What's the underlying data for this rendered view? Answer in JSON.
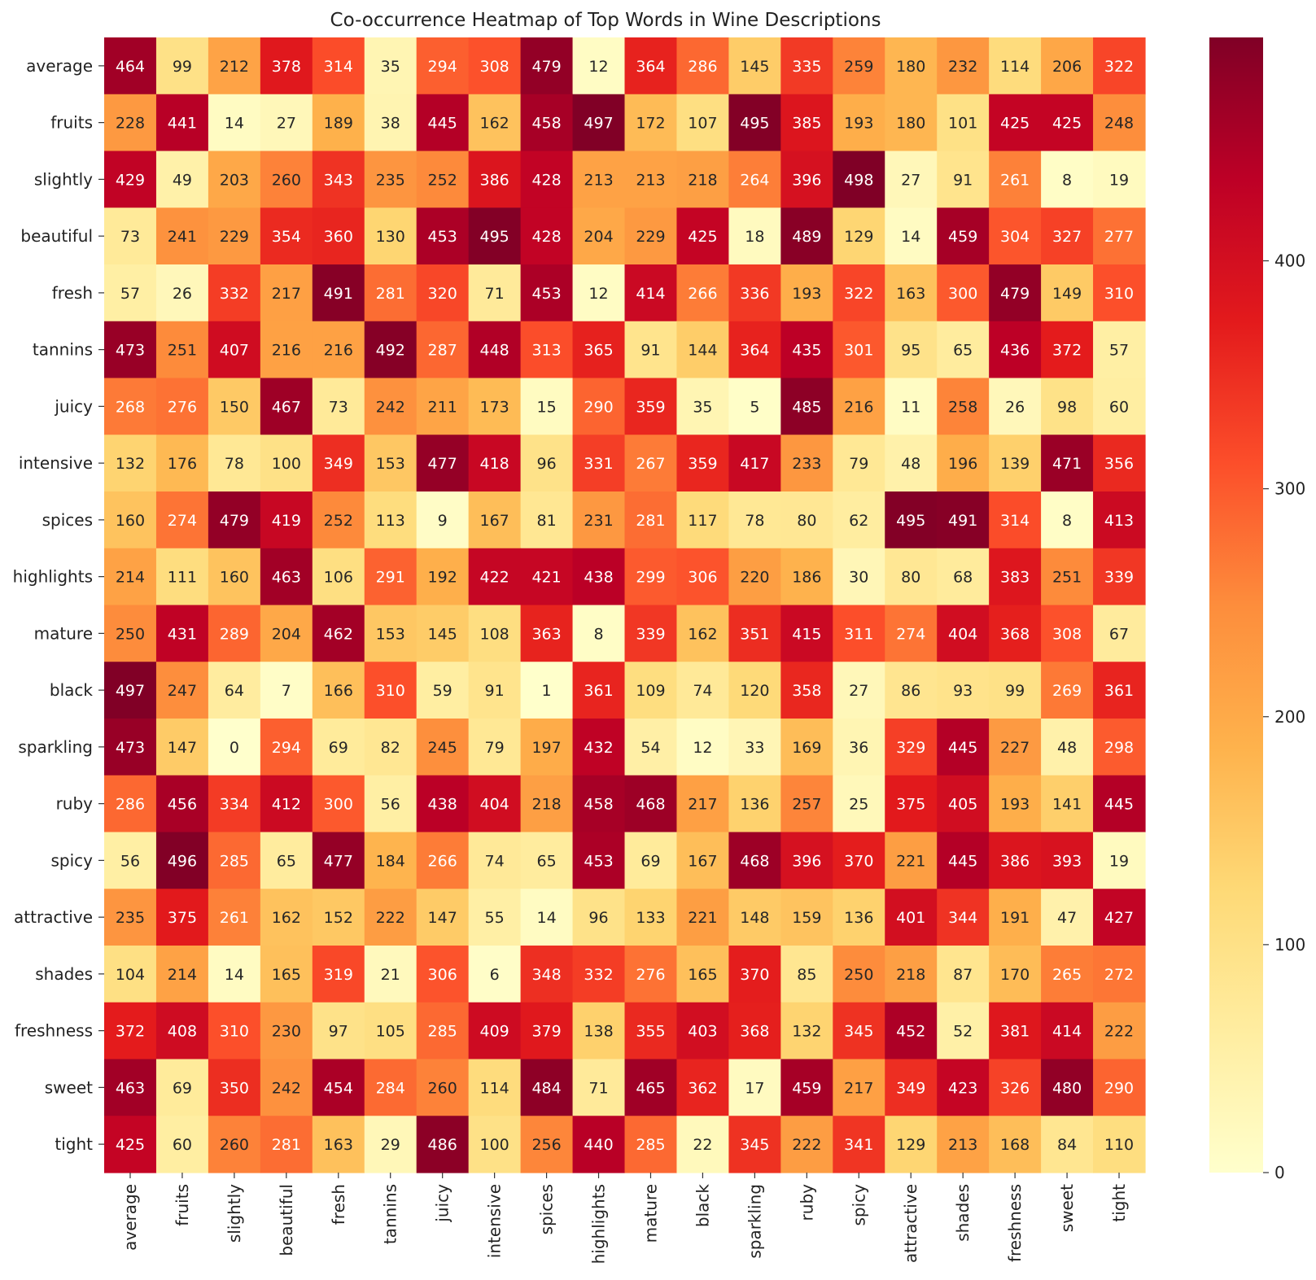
{
  "chart_data": {
    "type": "heatmap",
    "title": "Co-occurrence Heatmap of Top Words in Wine Descriptions",
    "x_labels": [
      "average",
      "fruits",
      "slightly",
      "beautiful",
      "fresh",
      "tannins",
      "juicy",
      "intensive",
      "spices",
      "highlights",
      "mature",
      "black",
      "sparkling",
      "ruby",
      "spicy",
      "attractive",
      "shades",
      "freshness",
      "sweet",
      "tight"
    ],
    "y_labels": [
      "average",
      "fruits",
      "slightly",
      "beautiful",
      "fresh",
      "tannins",
      "juicy",
      "intensive",
      "spices",
      "highlights",
      "mature",
      "black",
      "sparkling",
      "ruby",
      "spicy",
      "attractive",
      "shades",
      "freshness",
      "sweet",
      "tight"
    ],
    "values": [
      [
        464,
        99,
        212,
        378,
        314,
        35,
        294,
        308,
        479,
        12,
        364,
        286,
        145,
        335,
        259,
        180,
        232,
        114,
        206,
        322
      ],
      [
        228,
        441,
        14,
        27,
        189,
        38,
        445,
        162,
        458,
        497,
        172,
        107,
        495,
        385,
        193,
        180,
        101,
        425,
        425,
        248
      ],
      [
        429,
        49,
        203,
        260,
        343,
        235,
        252,
        386,
        428,
        213,
        213,
        218,
        264,
        396,
        498,
        27,
        91,
        261,
        8,
        19
      ],
      [
        73,
        241,
        229,
        354,
        360,
        130,
        453,
        495,
        428,
        204,
        229,
        425,
        18,
        489,
        129,
        14,
        459,
        304,
        327,
        277
      ],
      [
        57,
        26,
        332,
        217,
        491,
        281,
        320,
        71,
        453,
        12,
        414,
        266,
        336,
        193,
        322,
        163,
        300,
        479,
        149,
        310
      ],
      [
        473,
        251,
        407,
        216,
        216,
        492,
        287,
        448,
        313,
        365,
        91,
        144,
        364,
        435,
        301,
        95,
        65,
        436,
        372,
        57
      ],
      [
        268,
        276,
        150,
        467,
        73,
        242,
        211,
        173,
        15,
        290,
        359,
        35,
        5,
        485,
        216,
        11,
        258,
        26,
        98,
        60
      ],
      [
        132,
        176,
        78,
        100,
        349,
        153,
        477,
        418,
        96,
        331,
        267,
        359,
        417,
        233,
        79,
        48,
        196,
        139,
        471,
        356
      ],
      [
        160,
        274,
        479,
        419,
        252,
        113,
        9,
        167,
        81,
        231,
        281,
        117,
        78,
        80,
        62,
        495,
        491,
        314,
        8,
        413
      ],
      [
        214,
        111,
        160,
        463,
        106,
        291,
        192,
        422,
        421,
        438,
        299,
        306,
        220,
        186,
        30,
        80,
        68,
        383,
        251,
        339
      ],
      [
        250,
        431,
        289,
        204,
        462,
        153,
        145,
        108,
        363,
        8,
        339,
        162,
        351,
        415,
        311,
        274,
        404,
        368,
        308,
        67
      ],
      [
        497,
        247,
        64,
        7,
        166,
        310,
        59,
        91,
        1,
        361,
        109,
        74,
        120,
        358,
        27,
        86,
        93,
        99,
        269,
        361
      ],
      [
        473,
        147,
        0,
        294,
        69,
        82,
        245,
        79,
        197,
        432,
        54,
        12,
        33,
        169,
        36,
        329,
        445,
        227,
        48,
        298
      ],
      [
        286,
        456,
        334,
        412,
        300,
        56,
        438,
        404,
        218,
        458,
        468,
        217,
        136,
        257,
        25,
        375,
        405,
        193,
        141,
        445
      ],
      [
        56,
        496,
        285,
        65,
        477,
        184,
        266,
        74,
        65,
        453,
        69,
        167,
        468,
        396,
        370,
        221,
        445,
        386,
        393,
        19
      ],
      [
        235,
        375,
        261,
        162,
        152,
        222,
        147,
        55,
        14,
        96,
        133,
        221,
        148,
        159,
        136,
        401,
        344,
        191,
        47,
        427
      ],
      [
        104,
        214,
        14,
        165,
        319,
        21,
        306,
        6,
        348,
        332,
        276,
        165,
        370,
        85,
        250,
        218,
        87,
        170,
        265,
        272
      ],
      [
        372,
        408,
        310,
        230,
        97,
        105,
        285,
        409,
        379,
        138,
        355,
        403,
        368,
        132,
        345,
        452,
        52,
        381,
        414,
        222
      ],
      [
        463,
        69,
        350,
        242,
        454,
        284,
        260,
        114,
        484,
        71,
        465,
        362,
        17,
        459,
        217,
        349,
        423,
        326,
        480,
        290
      ],
      [
        425,
        60,
        260,
        281,
        163,
        29,
        486,
        100,
        256,
        440,
        285,
        22,
        345,
        222,
        341,
        129,
        213,
        168,
        84,
        110
      ]
    ],
    "colorbar": {
      "colormap": "YlOrRd",
      "range": [
        0,
        498
      ],
      "ticks": [
        0,
        100,
        200,
        300,
        400
      ],
      "colors": [
        "#ffffcc",
        "#ffeda0",
        "#fed976",
        "#feb24c",
        "#fd8d3c",
        "#fc4e2a",
        "#e31a1c",
        "#bd0026",
        "#800026"
      ]
    },
    "annotate": true,
    "grid": false
  }
}
